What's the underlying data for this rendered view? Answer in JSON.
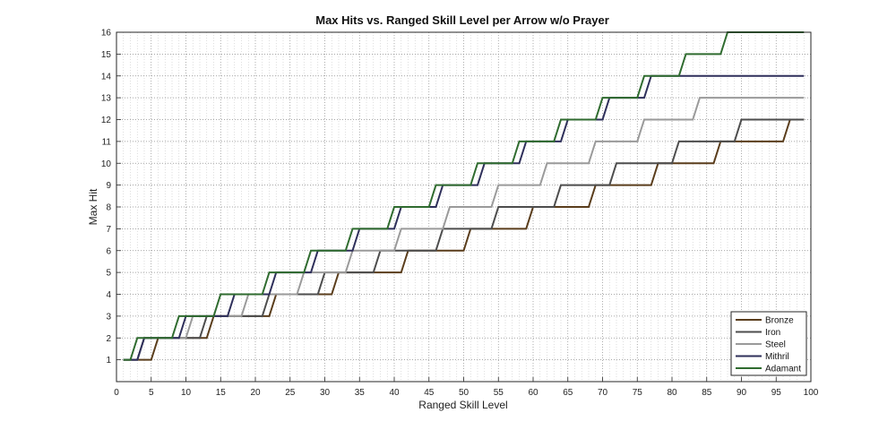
{
  "chart_data": {
    "type": "line",
    "title": "Max Hits vs. Ranged Skill Level per Arrow w/o Prayer",
    "xlabel": "Ranged Skill Level",
    "ylabel": "Max Hit",
    "xlim": [
      0,
      100
    ],
    "ylim": [
      0,
      16
    ],
    "xticks": [
      0,
      5,
      10,
      15,
      20,
      25,
      30,
      35,
      40,
      45,
      50,
      55,
      60,
      65,
      70,
      75,
      80,
      85,
      90,
      95,
      100
    ],
    "yticks": [
      1,
      2,
      3,
      4,
      5,
      6,
      7,
      8,
      9,
      10,
      11,
      12,
      13,
      14,
      15,
      16
    ],
    "grid": true,
    "minor_grid": true,
    "legend_position": "bottom-right",
    "series": [
      {
        "name": "Bronze",
        "color": "#5a3d1c",
        "start_level": 1,
        "end_level": 99,
        "max_hit_by_level": [
          1,
          1,
          1,
          1,
          1,
          2,
          2,
          2,
          2,
          2,
          2,
          2,
          2,
          3,
          3,
          3,
          3,
          3,
          3,
          3,
          3,
          3,
          4,
          4,
          4,
          4,
          4,
          4,
          4,
          4,
          4,
          5,
          5,
          5,
          5,
          5,
          5,
          5,
          5,
          5,
          5,
          6,
          6,
          6,
          6,
          6,
          6,
          6,
          6,
          6,
          7,
          7,
          7,
          7,
          7,
          7,
          7,
          7,
          7,
          8,
          8,
          8,
          8,
          8,
          8,
          8,
          8,
          8,
          9,
          9,
          9,
          9,
          9,
          9,
          9,
          9,
          9,
          10,
          10,
          10,
          10,
          10,
          10,
          10,
          10,
          10,
          11,
          11,
          11,
          11,
          11,
          11,
          11,
          11,
          11,
          11,
          12,
          12,
          12
        ]
      },
      {
        "name": "Iron",
        "color": "#4d4d4d",
        "start_level": 1,
        "end_level": 99,
        "max_hit_by_level": [
          1,
          1,
          1,
          2,
          2,
          2,
          2,
          2,
          2,
          2,
          2,
          2,
          3,
          3,
          3,
          3,
          3,
          3,
          3,
          3,
          3,
          4,
          4,
          4,
          4,
          4,
          4,
          4,
          4,
          5,
          5,
          5,
          5,
          5,
          5,
          5,
          5,
          6,
          6,
          6,
          6,
          6,
          6,
          6,
          6,
          6,
          7,
          7,
          7,
          7,
          7,
          7,
          7,
          7,
          8,
          8,
          8,
          8,
          8,
          8,
          8,
          8,
          8,
          9,
          9,
          9,
          9,
          9,
          9,
          9,
          9,
          10,
          10,
          10,
          10,
          10,
          10,
          10,
          10,
          10,
          11,
          11,
          11,
          11,
          11,
          11,
          11,
          11,
          11,
          12,
          12,
          12,
          12,
          12,
          12,
          12,
          12,
          12,
          12
        ]
      },
      {
        "name": "Steel",
        "color": "#9a9a9a",
        "start_level": 1,
        "end_level": 99,
        "max_hit_by_level": [
          1,
          1,
          1,
          2,
          2,
          2,
          2,
          2,
          2,
          2,
          3,
          3,
          3,
          3,
          3,
          3,
          3,
          3,
          4,
          4,
          4,
          4,
          4,
          4,
          4,
          4,
          5,
          5,
          5,
          5,
          5,
          5,
          5,
          6,
          6,
          6,
          6,
          6,
          6,
          6,
          7,
          7,
          7,
          7,
          7,
          7,
          7,
          8,
          8,
          8,
          8,
          8,
          8,
          8,
          9,
          9,
          9,
          9,
          9,
          9,
          9,
          10,
          10,
          10,
          10,
          10,
          10,
          10,
          11,
          11,
          11,
          11,
          11,
          11,
          11,
          12,
          12,
          12,
          12,
          12,
          12,
          12,
          12,
          13,
          13,
          13,
          13,
          13,
          13,
          13,
          13,
          13,
          13,
          13,
          13,
          13,
          13,
          13,
          13
        ]
      },
      {
        "name": "Mithril",
        "color": "#2e2f5a",
        "start_level": 1,
        "end_level": 99,
        "max_hit_by_level": [
          1,
          1,
          1,
          2,
          2,
          2,
          2,
          2,
          2,
          3,
          3,
          3,
          3,
          3,
          3,
          3,
          4,
          4,
          4,
          4,
          4,
          4,
          5,
          5,
          5,
          5,
          5,
          5,
          6,
          6,
          6,
          6,
          6,
          6,
          7,
          7,
          7,
          7,
          7,
          7,
          8,
          8,
          8,
          8,
          8,
          8,
          9,
          9,
          9,
          9,
          9,
          9,
          10,
          10,
          10,
          10,
          10,
          10,
          11,
          11,
          11,
          11,
          11,
          11,
          12,
          12,
          12,
          12,
          12,
          12,
          13,
          13,
          13,
          13,
          13,
          13,
          14,
          14,
          14,
          14,
          14,
          14,
          14,
          14,
          14,
          14,
          14,
          14,
          14,
          14,
          14,
          14,
          14,
          14,
          14,
          14,
          14,
          14,
          14
        ]
      },
      {
        "name": "Adamant",
        "color": "#2f6b2f",
        "start_level": 1,
        "end_level": 99,
        "max_hit_by_level": [
          1,
          1,
          2,
          2,
          2,
          2,
          2,
          2,
          3,
          3,
          3,
          3,
          3,
          3,
          4,
          4,
          4,
          4,
          4,
          4,
          4,
          5,
          5,
          5,
          5,
          5,
          5,
          6,
          6,
          6,
          6,
          6,
          6,
          7,
          7,
          7,
          7,
          7,
          7,
          8,
          8,
          8,
          8,
          8,
          8,
          9,
          9,
          9,
          9,
          9,
          9,
          10,
          10,
          10,
          10,
          10,
          10,
          11,
          11,
          11,
          11,
          11,
          11,
          12,
          12,
          12,
          12,
          12,
          12,
          13,
          13,
          13,
          13,
          13,
          13,
          14,
          14,
          14,
          14,
          14,
          14,
          15,
          15,
          15,
          15,
          15,
          15,
          16,
          16,
          16,
          16,
          16,
          16,
          16,
          16,
          16,
          16,
          16,
          16
        ]
      }
    ]
  }
}
